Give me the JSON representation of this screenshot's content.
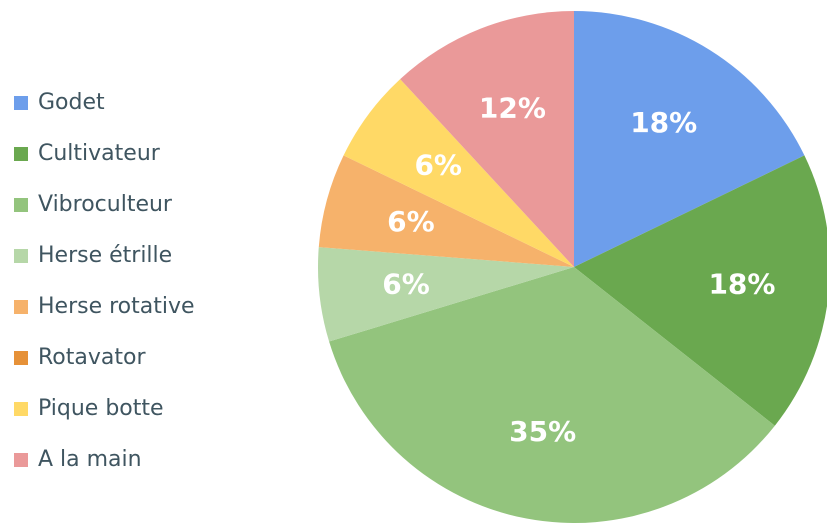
{
  "chart_data": {
    "type": "pie",
    "categories": [
      "Godet",
      "Cultivateur",
      "Vibroculteur",
      "Herse étrille",
      "Herse rotative",
      "Rotavator",
      "Pique botte",
      "A la main"
    ],
    "values": [
      18,
      18,
      35,
      6,
      6,
      0,
      6,
      12
    ],
    "value_labels": [
      "18%",
      "18%",
      "35%",
      "6%",
      "6%",
      null,
      "6%",
      "12%"
    ],
    "colors": [
      "#6d9eeb",
      "#6aa84f",
      "#93c47d",
      "#b6d7a8",
      "#f6b26b",
      "#e69138",
      "#ffd966",
      "#ea9999"
    ],
    "legend": "left"
  }
}
